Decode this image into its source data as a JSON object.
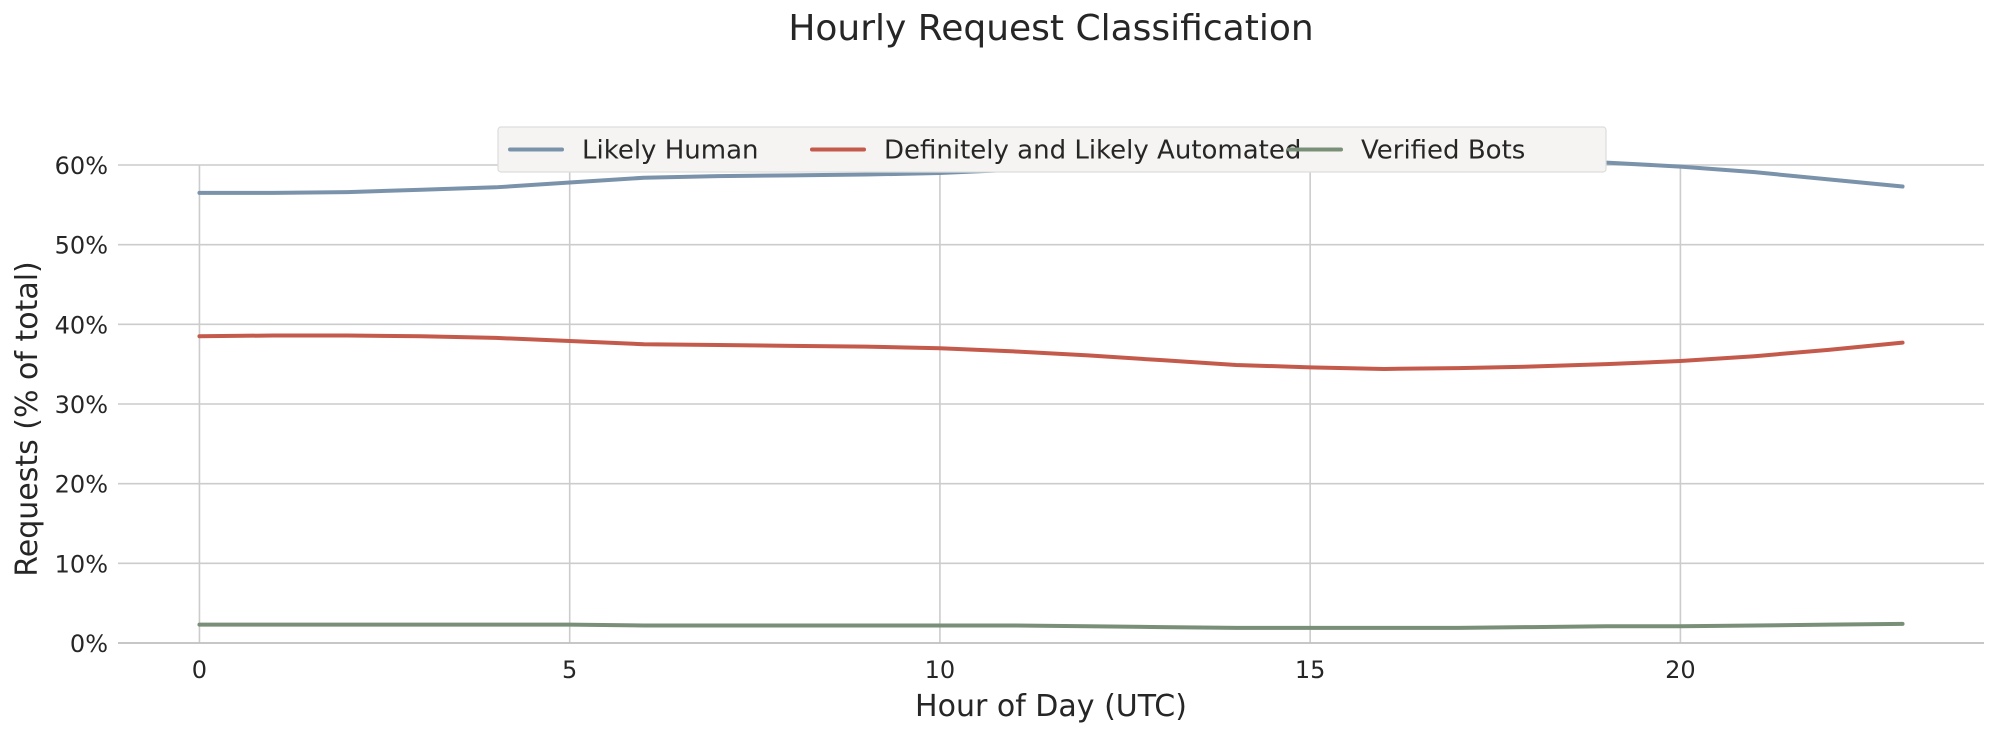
{
  "chart_data": {
    "type": "line",
    "title": "Hourly Request Classification",
    "xlabel": "Hour of Day (UTC)",
    "ylabel": "Requests (% of total)",
    "x": [
      0,
      1,
      2,
      3,
      4,
      5,
      6,
      7,
      8,
      9,
      10,
      11,
      12,
      13,
      14,
      15,
      16,
      17,
      18,
      19,
      20,
      21,
      22,
      23
    ],
    "xlim": [
      -1.1,
      24.1
    ],
    "ylim": [
      0,
      0.6
    ],
    "xticks": [
      0,
      5,
      10,
      15,
      20
    ],
    "xtick_labels": [
      "0",
      "5",
      "10",
      "15",
      "20"
    ],
    "yticks": [
      0,
      0.1,
      0.2,
      0.3,
      0.4,
      0.5,
      0.6
    ],
    "ytick_labels": [
      "0%",
      "10%",
      "20%",
      "30%",
      "40%",
      "50%",
      "60%"
    ],
    "grid": true,
    "legend_position": "top-center",
    "series": [
      {
        "name": "Likely Human",
        "color": "#7a93ab",
        "values": [
          0.565,
          0.565,
          0.566,
          0.569,
          0.572,
          0.578,
          0.584,
          0.586,
          0.587,
          0.588,
          0.59,
          0.594,
          0.599,
          0.604,
          0.609,
          0.611,
          0.612,
          0.61,
          0.607,
          0.603,
          0.598,
          0.591,
          0.582,
          0.573
        ]
      },
      {
        "name": "Definitely and Likely Automated",
        "color": "#c45a4b",
        "values": [
          0.385,
          0.386,
          0.386,
          0.385,
          0.383,
          0.379,
          0.375,
          0.374,
          0.373,
          0.372,
          0.37,
          0.366,
          0.361,
          0.355,
          0.349,
          0.346,
          0.344,
          0.345,
          0.347,
          0.35,
          0.354,
          0.36,
          0.368,
          0.377
        ]
      },
      {
        "name": "Verified Bots",
        "color": "#7a8f78",
        "values": [
          0.023,
          0.023,
          0.023,
          0.023,
          0.023,
          0.023,
          0.022,
          0.022,
          0.022,
          0.022,
          0.022,
          0.022,
          0.021,
          0.02,
          0.019,
          0.019,
          0.019,
          0.019,
          0.02,
          0.021,
          0.021,
          0.022,
          0.023,
          0.024
        ]
      }
    ]
  }
}
